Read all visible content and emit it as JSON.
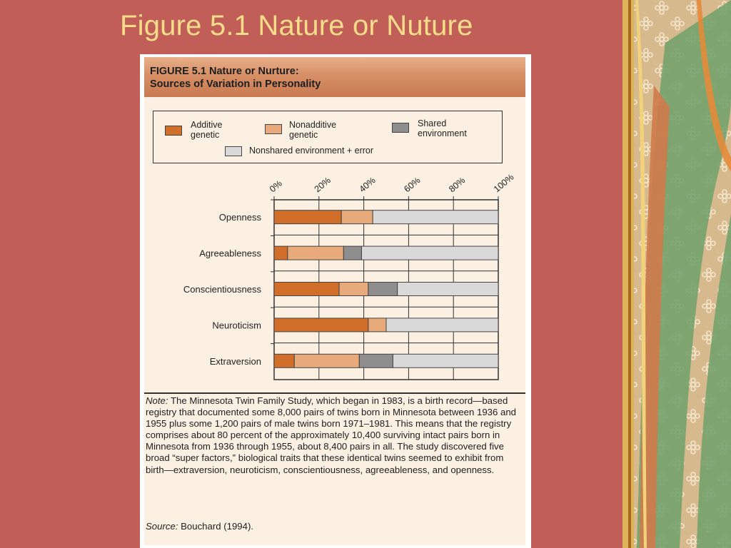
{
  "slide": {
    "title": "Figure 5.1 Nature or Nuture"
  },
  "figure": {
    "header_line1": "FIGURE 5.1 Nature or Nurture:",
    "header_line2": "Sources of Variation in Personality",
    "note_label": "Note:",
    "note_text": "The Minnesota Twin Family Study, which began in 1983, is a birth record—based registry that documented some 8,000 pairs of twins born in Minnesota between 1936 and 1955 plus some 1,200 pairs of male twins born 1971–1981. This means that the registry comprises about 80 percent of the approximately 10,400 surviving intact pairs born in Minnesota from 1936 through 1955, about 8,400 pairs in all. The study discovered five broad “super factors,” biological traits that these identical twins seemed to exhibit from birth—extraversion, neuroticism, conscientiousness, agreeableness, and openness.",
    "source_label": "Source:",
    "source_text": "Bouchard (1994)."
  },
  "legend": {
    "additive": "Additive\ngenetic",
    "nonadditive": "Nonadditive\ngenetic",
    "shared": "Shared\nenvironment",
    "nonshared": "Nonshared environment + error"
  },
  "chart_data": {
    "type": "bar",
    "orientation": "horizontal",
    "stacked": true,
    "categories": [
      "Openness",
      "Agreeableness",
      "Conscientiousness",
      "Neuroticism",
      "Extraversion"
    ],
    "series": [
      {
        "name": "Additive genetic",
        "values": [
          30,
          6,
          29,
          42,
          9
        ],
        "color": "#d06e2a"
      },
      {
        "name": "Nonadditive genetic",
        "values": [
          14,
          25,
          13,
          8,
          29
        ],
        "color": "#e8aa7a"
      },
      {
        "name": "Shared environment",
        "values": [
          0,
          8,
          13,
          0,
          15
        ],
        "color": "#8e8e8e"
      },
      {
        "name": "Nonshared environment + error",
        "values": [
          56,
          61,
          45,
          50,
          47
        ],
        "color": "#d9d9d9"
      }
    ],
    "x_ticks": [
      "0%",
      "20%",
      "40%",
      "60%",
      "80%",
      "100%"
    ],
    "xlim": [
      0,
      100
    ],
    "grid": true,
    "legend_position": "top"
  }
}
